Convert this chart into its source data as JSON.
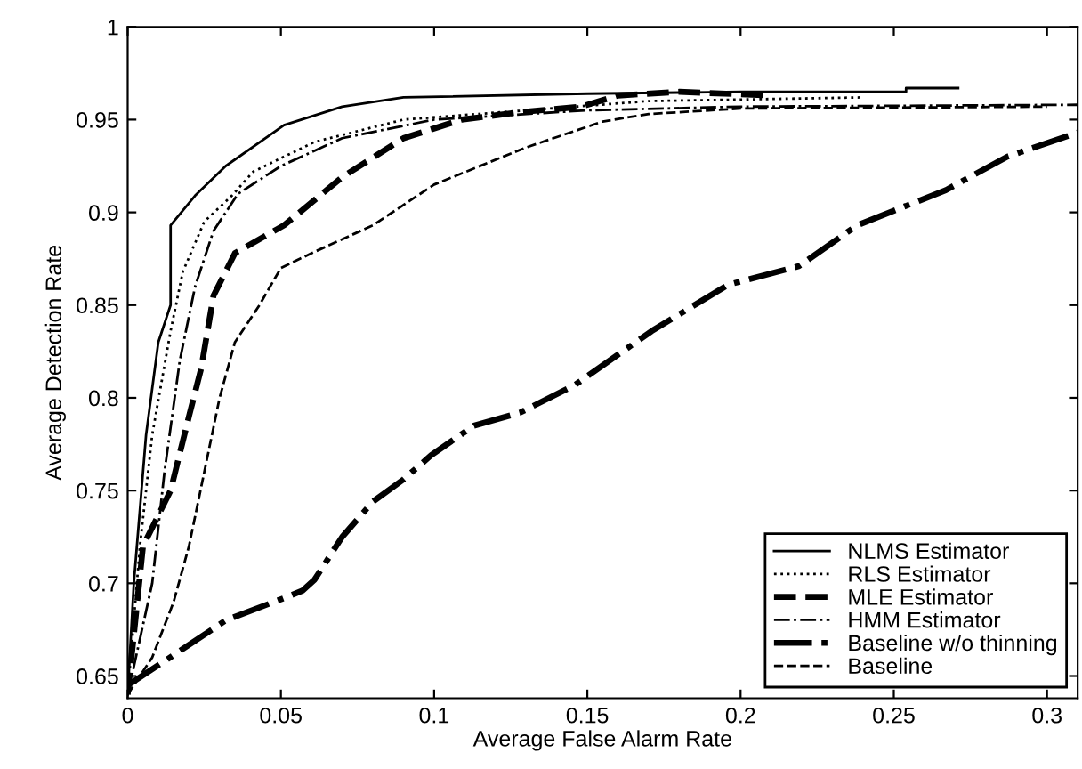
{
  "chart_data": {
    "type": "line",
    "xlabel": "Average False Alarm Rate",
    "ylabel": "Average Detection Rate",
    "xlim": [
      0,
      0.31
    ],
    "ylim": [
      0.638,
      1
    ],
    "xticks": [
      0,
      0.05,
      0.1,
      0.15,
      0.2,
      0.25,
      0.3
    ],
    "yticks": [
      0.65,
      0.7,
      0.75,
      0.8,
      0.85,
      0.9,
      0.95,
      1
    ],
    "grid": false,
    "legend": "bottom right",
    "marker": "none",
    "series": [
      {
        "name": "NLMS Estimator",
        "color": "#000000",
        "line_style": "solid",
        "x": [
          0,
          0.002,
          0.006,
          0.01,
          0.014,
          0.014,
          0.022,
          0.032,
          0.051,
          0.07,
          0.09,
          0.15,
          0.2,
          0.254,
          0.254,
          0.271
        ],
        "values": [
          0.64,
          0.7,
          0.78,
          0.83,
          0.85,
          0.893,
          0.909,
          0.925,
          0.947,
          0.957,
          0.962,
          0.964,
          0.965,
          0.965,
          0.967,
          0.967
        ]
      },
      {
        "name": "RLS Estimator",
        "color": "#000000",
        "line_style": "dotted",
        "x": [
          0,
          0.004,
          0.008,
          0.014,
          0.018,
          0.025,
          0.034,
          0.041,
          0.061,
          0.09,
          0.13,
          0.17,
          0.24
        ],
        "values": [
          0.64,
          0.72,
          0.78,
          0.836,
          0.868,
          0.895,
          0.909,
          0.922,
          0.938,
          0.95,
          0.955,
          0.96,
          0.962
        ]
      },
      {
        "name": "MLE Estimator",
        "color": "#000000",
        "line_style": "dashed",
        "x": [
          0,
          0.005,
          0.014,
          0.02,
          0.024,
          0.028,
          0.035,
          0.051,
          0.07,
          0.09,
          0.109,
          0.128,
          0.148,
          0.16,
          0.18,
          0.21
        ],
        "values": [
          0.64,
          0.72,
          0.75,
          0.79,
          0.816,
          0.855,
          0.878,
          0.893,
          0.919,
          0.94,
          0.95,
          0.954,
          0.957,
          0.963,
          0.965,
          0.963
        ]
      },
      {
        "name": "HMM Estimator",
        "color": "#000000",
        "line_style": "dashdot",
        "x": [
          0,
          0.008,
          0.012,
          0.017,
          0.022,
          0.028,
          0.036,
          0.05,
          0.07,
          0.1,
          0.15,
          0.2,
          0.31
        ],
        "values": [
          0.64,
          0.7,
          0.76,
          0.82,
          0.86,
          0.89,
          0.91,
          0.925,
          0.94,
          0.95,
          0.955,
          0.957,
          0.958
        ]
      },
      {
        "name": "Baseline w/o thinning",
        "color": "#000000",
        "line_style": "dashdot",
        "x": [
          0,
          0.012,
          0.032,
          0.051,
          0.057,
          0.061,
          0.07,
          0.08,
          0.09,
          0.099,
          0.113,
          0.128,
          0.146,
          0.171,
          0.196,
          0.219,
          0.238,
          0.267,
          0.287,
          0.31
        ],
        "values": [
          0.645,
          0.658,
          0.68,
          0.692,
          0.696,
          0.702,
          0.725,
          0.744,
          0.756,
          0.769,
          0.785,
          0.792,
          0.807,
          0.836,
          0.861,
          0.871,
          0.893,
          0.912,
          0.93,
          0.943
        ]
      },
      {
        "name": "Baseline",
        "color": "#000000",
        "line_style": "dashed",
        "x": [
          0,
          0.008,
          0.015,
          0.02,
          0.025,
          0.03,
          0.035,
          0.043,
          0.05,
          0.06,
          0.08,
          0.1,
          0.13,
          0.155,
          0.17,
          0.2,
          0.3
        ],
        "values": [
          0.64,
          0.66,
          0.69,
          0.72,
          0.76,
          0.8,
          0.83,
          0.85,
          0.87,
          0.878,
          0.893,
          0.915,
          0.935,
          0.949,
          0.953,
          0.956,
          0.957
        ]
      }
    ]
  }
}
